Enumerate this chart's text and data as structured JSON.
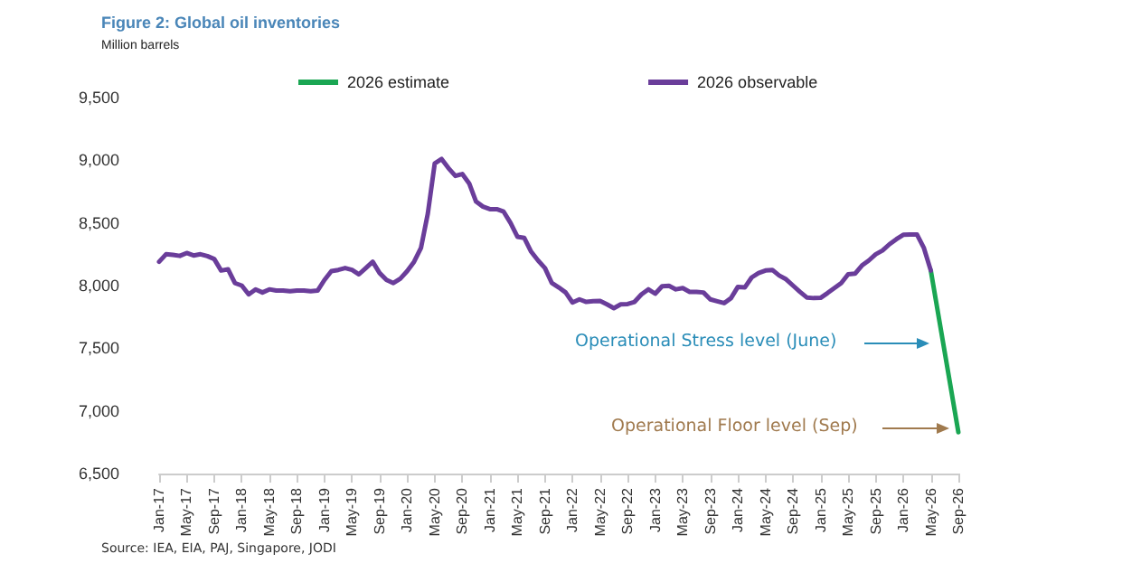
{
  "chart_data": {
    "type": "line",
    "title": "Figure 2: Global oil inventories",
    "ylabel": "Million barrels",
    "categories": [
      "Jan-17",
      null,
      null,
      null,
      "May-17",
      null,
      null,
      null,
      "Sep-17",
      null,
      null,
      null,
      "Jan-18",
      null,
      null,
      null,
      "May-18",
      null,
      null,
      null,
      "Sep-18",
      null,
      null,
      null,
      "Jan-19",
      null,
      null,
      null,
      "May-19",
      null,
      null,
      null,
      "Sep-19",
      null,
      null,
      null,
      "Jan-20",
      null,
      null,
      null,
      "May-20",
      null,
      null,
      null,
      "Sep-20",
      null,
      null,
      null,
      "Jan-21",
      null,
      null,
      null,
      "May-21",
      null,
      null,
      null,
      "Sep-21",
      null,
      null,
      null,
      "Jan-22",
      null,
      null,
      null,
      "May-22",
      null,
      null,
      null,
      "Sep-22",
      null,
      null,
      null,
      "Jan-23",
      null,
      null,
      null,
      "May-23",
      null,
      null,
      null,
      "Sep-23",
      null,
      null,
      null,
      "Jan-24",
      null,
      null,
      null,
      "May-24",
      null,
      null,
      null,
      "Sep-24",
      null,
      null,
      null,
      "Jan-25",
      null,
      null,
      null,
      "May-25",
      null,
      null,
      null,
      "Sep-25",
      null,
      null,
      null,
      "Jan-26",
      null,
      null,
      null,
      "May-26",
      null,
      null,
      null,
      "Sep-26"
    ],
    "series": [
      {
        "name": "2026 estimate",
        "color": "#1aa653",
        "values": [
          null,
          null,
          null,
          null,
          null,
          null,
          null,
          null,
          null,
          null,
          null,
          null,
          null,
          null,
          null,
          null,
          null,
          null,
          null,
          null,
          null,
          null,
          null,
          null,
          null,
          null,
          null,
          null,
          null,
          null,
          null,
          null,
          null,
          null,
          null,
          null,
          null,
          null,
          null,
          null,
          null,
          null,
          null,
          null,
          null,
          null,
          null,
          null,
          null,
          null,
          null,
          null,
          null,
          null,
          null,
          null,
          null,
          null,
          null,
          null,
          null,
          null,
          null,
          null,
          null,
          null,
          null,
          null,
          null,
          null,
          null,
          null,
          null,
          null,
          null,
          null,
          null,
          null,
          null,
          null,
          null,
          null,
          null,
          null,
          null,
          null,
          null,
          null,
          null,
          null,
          null,
          null,
          null,
          null,
          null,
          null,
          null,
          null,
          null,
          null,
          null,
          null,
          null,
          null,
          null,
          null,
          null,
          null,
          null,
          null,
          null,
          null,
          8120,
          null,
          null,
          null,
          6830
        ]
      },
      {
        "name": "2026 observable",
        "color": "#6a3d9a",
        "values": [
          8190,
          8250,
          8245,
          8237,
          8260,
          8240,
          8250,
          8235,
          8212,
          8120,
          8130,
          8020,
          8000,
          7930,
          7970,
          7945,
          7970,
          7960,
          7960,
          7955,
          7960,
          7960,
          7955,
          7960,
          8045,
          8115,
          8125,
          8140,
          8125,
          8090,
          8140,
          8190,
          8100,
          8045,
          8020,
          8055,
          8115,
          8190,
          8300,
          8575,
          8975,
          9010,
          8937,
          8875,
          8890,
          8815,
          8670,
          8630,
          8610,
          8610,
          8590,
          8500,
          8390,
          8380,
          8270,
          8200,
          8140,
          8020,
          7985,
          7945,
          7865,
          7890,
          7870,
          7875,
          7877,
          7850,
          7820,
          7850,
          7853,
          7870,
          7930,
          7970,
          7935,
          7995,
          7998,
          7970,
          7980,
          7950,
          7950,
          7945,
          7890,
          7875,
          7860,
          7900,
          7990,
          7985,
          8065,
          8100,
          8120,
          8125,
          8080,
          8050,
          8000,
          7950,
          7905,
          7900,
          7902,
          7940,
          7980,
          8020,
          8090,
          8095,
          8160,
          8200,
          8250,
          8280,
          8330,
          8370,
          8405,
          8407,
          8407,
          8300,
          8120,
          null,
          null,
          null,
          null
        ]
      }
    ],
    "ylim": [
      6500,
      9500
    ],
    "yticks": [
      {
        "value": 6500,
        "label": "6,500"
      },
      {
        "value": 7000,
        "label": "7,000"
      },
      {
        "value": 7500,
        "label": "7,500"
      },
      {
        "value": 8000,
        "label": "8,000"
      },
      {
        "value": 8500,
        "label": "8,500"
      },
      {
        "value": 9000,
        "label": "9,000"
      },
      {
        "value": 9500,
        "label": "9,500"
      }
    ],
    "grid": false,
    "legend": "top",
    "marker": "none",
    "line_style": "solid",
    "annotations": [
      "Operational Stress level (June)",
      "Operational Floor level (Sep)",
      "Source: IEA, EIA, PAJ, Singapore, JODI"
    ]
  }
}
